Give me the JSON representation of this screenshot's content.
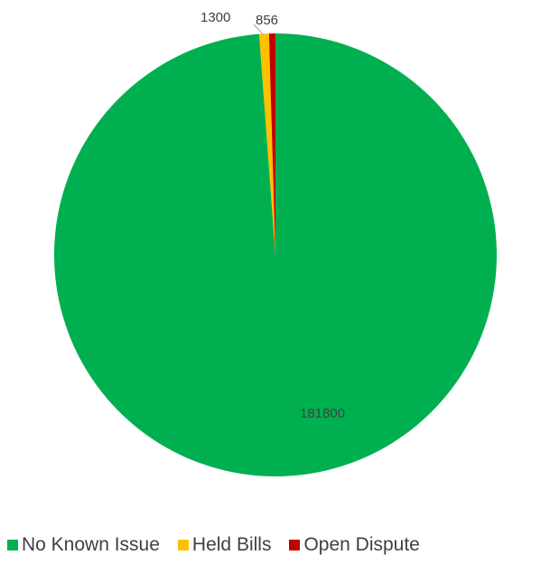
{
  "chart_data": {
    "type": "pie",
    "title": "",
    "categories": [
      "No Known Issue",
      "Held Bills",
      "Open Dispute"
    ],
    "values": [
      181800,
      1300,
      856
    ],
    "colors": [
      "#00b050",
      "#ffc000",
      "#c00000"
    ],
    "data_labels": [
      "181800",
      "1300",
      "856"
    ],
    "legend_position": "bottom"
  }
}
